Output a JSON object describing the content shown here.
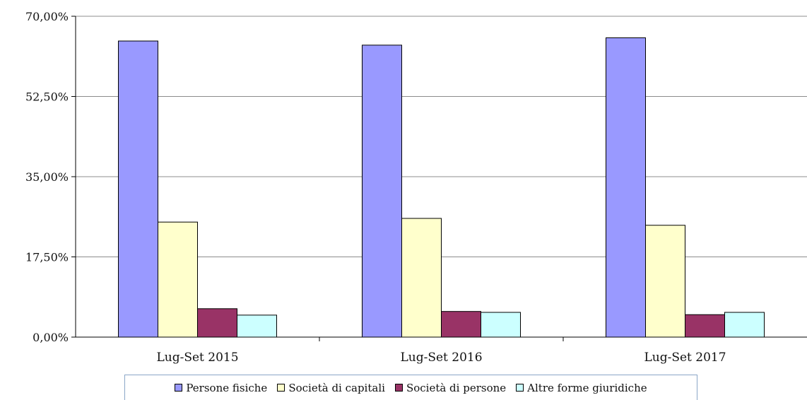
{
  "chart_data": {
    "type": "bar",
    "categories": [
      "Lug-Set 2015",
      "Lug-Set 2016",
      "Lug-Set 2017"
    ],
    "series": [
      {
        "name": "Persone fisiche",
        "values": [
          64.6,
          63.7,
          65.3
        ],
        "color": "#9999ff"
      },
      {
        "name": "Società di capitali",
        "values": [
          25.1,
          25.9,
          24.4
        ],
        "color": "#ffffcc"
      },
      {
        "name": "Società di persone",
        "values": [
          6.2,
          5.6,
          4.9
        ],
        "color": "#993366"
      },
      {
        "name": "Altre forme giuridiche",
        "values": [
          4.8,
          5.4,
          5.4
        ],
        "color": "#ccffff"
      }
    ],
    "ylim": [
      0,
      70
    ],
    "yticks": [
      "0,00%",
      "17,50%",
      "35,00%",
      "52,50%",
      "70,00%"
    ],
    "grid": true,
    "legend_position": "bottom"
  }
}
